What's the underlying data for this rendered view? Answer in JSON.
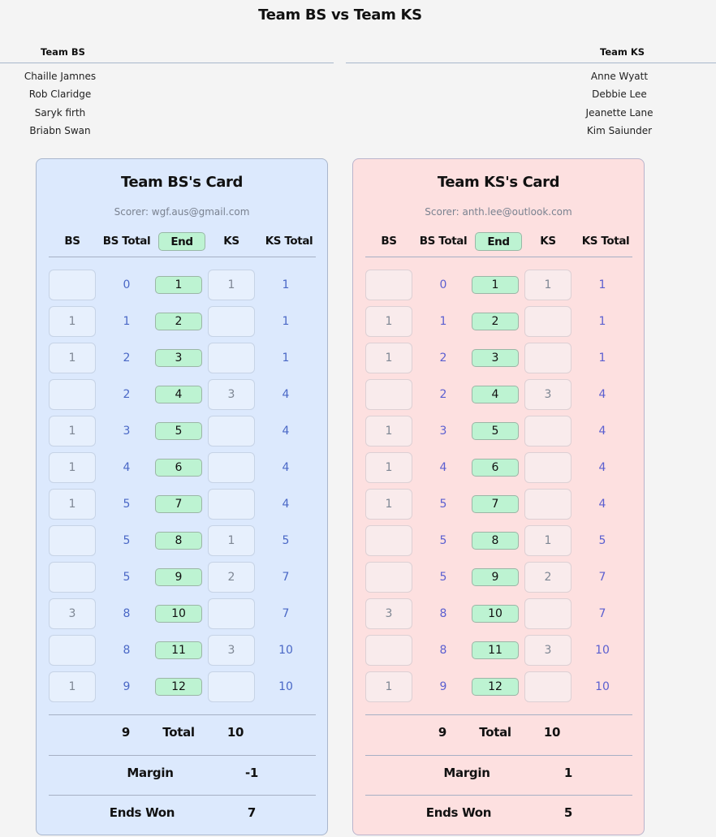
{
  "page": {
    "title": "Team BS vs Team KS"
  },
  "teams": {
    "left": {
      "name": "Team BS",
      "players": [
        "Chaille Jamnes",
        "Rob Claridge",
        "Saryk firth",
        "Briabn Swan"
      ]
    },
    "right": {
      "name": "Team KS",
      "players": [
        "Anne Wyatt",
        "Debbie Lee",
        "Jeanette Lane",
        "Kim Saiunder"
      ]
    }
  },
  "colors": {
    "bs_card_bg": "#dce9fd",
    "ks_card_bg": "#fde0e0",
    "end_pill_bg": "#bdf3d2",
    "total_text": "#4a68c6"
  },
  "cards": [
    {
      "title": "Team BS's Card",
      "scorer": "Scorer: wgf.aus@gmail.com",
      "headers": {
        "bs": "BS",
        "bs_total": "BS Total",
        "end": "End",
        "ks": "KS",
        "ks_total": "KS Total"
      },
      "rows": [
        {
          "bs": "",
          "bs_total": "0",
          "end": "1",
          "ks": "1",
          "ks_total": "1"
        },
        {
          "bs": "1",
          "bs_total": "1",
          "end": "2",
          "ks": "",
          "ks_total": "1"
        },
        {
          "bs": "1",
          "bs_total": "2",
          "end": "3",
          "ks": "",
          "ks_total": "1"
        },
        {
          "bs": "",
          "bs_total": "2",
          "end": "4",
          "ks": "3",
          "ks_total": "4"
        },
        {
          "bs": "1",
          "bs_total": "3",
          "end": "5",
          "ks": "",
          "ks_total": "4"
        },
        {
          "bs": "1",
          "bs_total": "4",
          "end": "6",
          "ks": "",
          "ks_total": "4"
        },
        {
          "bs": "1",
          "bs_total": "5",
          "end": "7",
          "ks": "",
          "ks_total": "4"
        },
        {
          "bs": "",
          "bs_total": "5",
          "end": "8",
          "ks": "1",
          "ks_total": "5"
        },
        {
          "bs": "",
          "bs_total": "5",
          "end": "9",
          "ks": "2",
          "ks_total": "7"
        },
        {
          "bs": "3",
          "bs_total": "8",
          "end": "10",
          "ks": "",
          "ks_total": "7"
        },
        {
          "bs": "",
          "bs_total": "8",
          "end": "11",
          "ks": "3",
          "ks_total": "10"
        },
        {
          "bs": "1",
          "bs_total": "9",
          "end": "12",
          "ks": "",
          "ks_total": "10"
        }
      ],
      "summary": {
        "total_label": "Total",
        "bs_total": "9",
        "ks_total": "10",
        "margin_label": "Margin",
        "margin": "-1",
        "ends_won_label": "Ends Won",
        "ends_won": "7"
      }
    },
    {
      "title": "Team KS's Card",
      "scorer": "Scorer: anth.lee@outlook.com",
      "headers": {
        "bs": "BS",
        "bs_total": "BS Total",
        "end": "End",
        "ks": "KS",
        "ks_total": "KS Total"
      },
      "rows": [
        {
          "bs": "",
          "bs_total": "0",
          "end": "1",
          "ks": "1",
          "ks_total": "1"
        },
        {
          "bs": "1",
          "bs_total": "1",
          "end": "2",
          "ks": "",
          "ks_total": "1"
        },
        {
          "bs": "1",
          "bs_total": "2",
          "end": "3",
          "ks": "",
          "ks_total": "1"
        },
        {
          "bs": "",
          "bs_total": "2",
          "end": "4",
          "ks": "3",
          "ks_total": "4"
        },
        {
          "bs": "1",
          "bs_total": "3",
          "end": "5",
          "ks": "",
          "ks_total": "4"
        },
        {
          "bs": "1",
          "bs_total": "4",
          "end": "6",
          "ks": "",
          "ks_total": "4"
        },
        {
          "bs": "1",
          "bs_total": "5",
          "end": "7",
          "ks": "",
          "ks_total": "4"
        },
        {
          "bs": "",
          "bs_total": "5",
          "end": "8",
          "ks": "1",
          "ks_total": "5"
        },
        {
          "bs": "",
          "bs_total": "5",
          "end": "9",
          "ks": "2",
          "ks_total": "7"
        },
        {
          "bs": "3",
          "bs_total": "8",
          "end": "10",
          "ks": "",
          "ks_total": "7"
        },
        {
          "bs": "",
          "bs_total": "8",
          "end": "11",
          "ks": "3",
          "ks_total": "10"
        },
        {
          "bs": "1",
          "bs_total": "9",
          "end": "12",
          "ks": "",
          "ks_total": "10"
        }
      ],
      "summary": {
        "total_label": "Total",
        "bs_total": "9",
        "ks_total": "10",
        "margin_label": "Margin",
        "margin": "1",
        "ends_won_label": "Ends Won",
        "ends_won": "5"
      }
    }
  ]
}
